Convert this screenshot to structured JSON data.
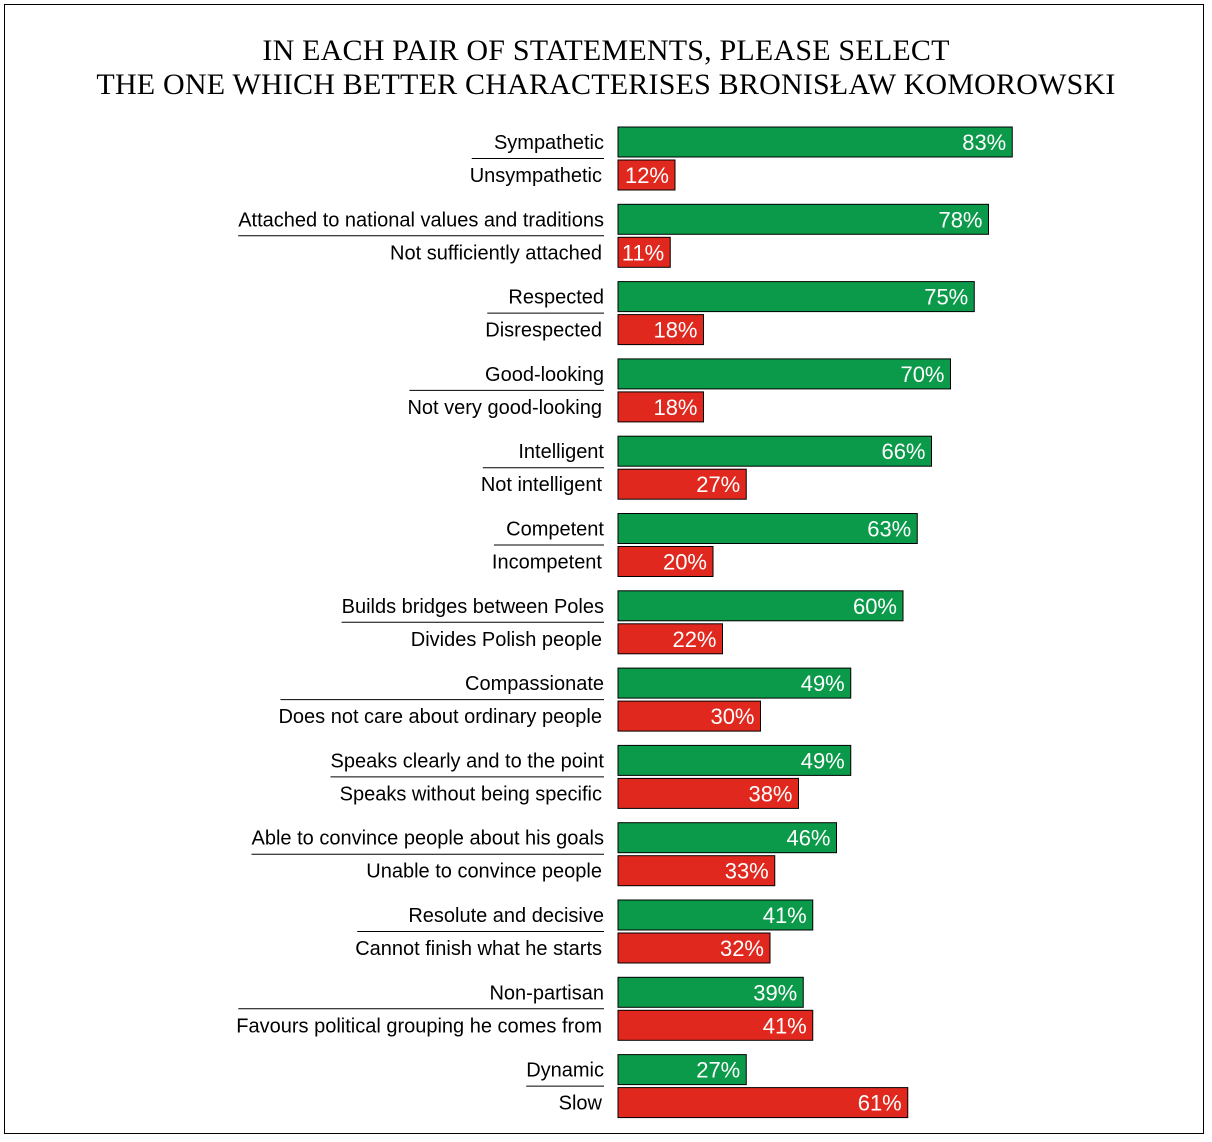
{
  "chart_data": {
    "type": "bar",
    "title_lines": [
      "IN EACH PAIR OF STATEMENTS, PLEASE SELECT",
      "THE ONE WHICH BETTER CHARACTERISES BRONISŁAW KOMOROWSKI"
    ],
    "xlim": [
      0,
      100
    ],
    "grid": false,
    "legend": "none",
    "value_suffix": "%",
    "colors": {
      "positive": "#0a9a4a",
      "negative": "#e0281e"
    },
    "pairs": [
      {
        "positive": {
          "label": "Sympathetic",
          "value": 83
        },
        "negative": {
          "label": "Unsympathetic",
          "value": 12
        }
      },
      {
        "positive": {
          "label": "Attached to national values and traditions",
          "value": 78
        },
        "negative": {
          "label": "Not sufficiently attached",
          "value": 11
        }
      },
      {
        "positive": {
          "label": "Respected",
          "value": 75
        },
        "negative": {
          "label": "Disrespected",
          "value": 18
        }
      },
      {
        "positive": {
          "label": "Good-looking",
          "value": 70
        },
        "negative": {
          "label": "Not very good-looking",
          "value": 18
        }
      },
      {
        "positive": {
          "label": "Intelligent",
          "value": 66
        },
        "negative": {
          "label": "Not intelligent",
          "value": 27
        }
      },
      {
        "positive": {
          "label": "Competent",
          "value": 63
        },
        "negative": {
          "label": "Incompetent",
          "value": 20
        }
      },
      {
        "positive": {
          "label": "Builds bridges between Poles",
          "value": 60
        },
        "negative": {
          "label": "Divides Polish people",
          "value": 22
        }
      },
      {
        "positive": {
          "label": "Compassionate",
          "value": 49
        },
        "negative": {
          "label": "Does not care about ordinary people",
          "value": 30
        }
      },
      {
        "positive": {
          "label": "Speaks clearly and to the point",
          "value": 49
        },
        "negative": {
          "label": "Speaks without being specific",
          "value": 38
        }
      },
      {
        "positive": {
          "label": "Able to convince people about his goals",
          "value": 46
        },
        "negative": {
          "label": "Unable to convince people",
          "value": 33
        }
      },
      {
        "positive": {
          "label": "Resolute and decisive",
          "value": 41
        },
        "negative": {
          "label": "Cannot finish what he starts",
          "value": 32
        }
      },
      {
        "positive": {
          "label": "Non-partisan",
          "value": 39
        },
        "negative": {
          "label": "Favours political grouping he comes from",
          "value": 41
        }
      },
      {
        "positive": {
          "label": "Dynamic",
          "value": 27
        },
        "negative": {
          "label": "Slow",
          "value": 61
        }
      }
    ]
  }
}
